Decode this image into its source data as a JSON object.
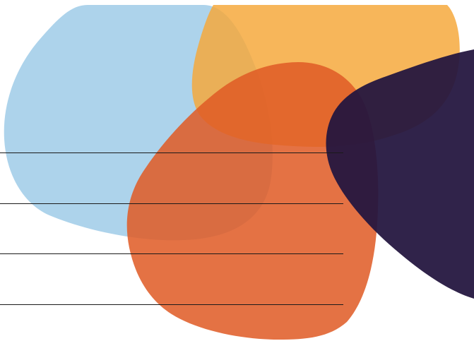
{
  "artwork": {
    "colors": {
      "light_blue": "#a8d0ea",
      "yellow_orange": "#f7b443",
      "red_orange": "#e05a26",
      "dark_navy": "#2a1d4d",
      "rule_line": "#1a1a1a"
    },
    "shape_names": [
      "light-blue-blob",
      "yellow-blob",
      "orange-blob",
      "navy-blob"
    ],
    "rule_line_count": 4
  }
}
